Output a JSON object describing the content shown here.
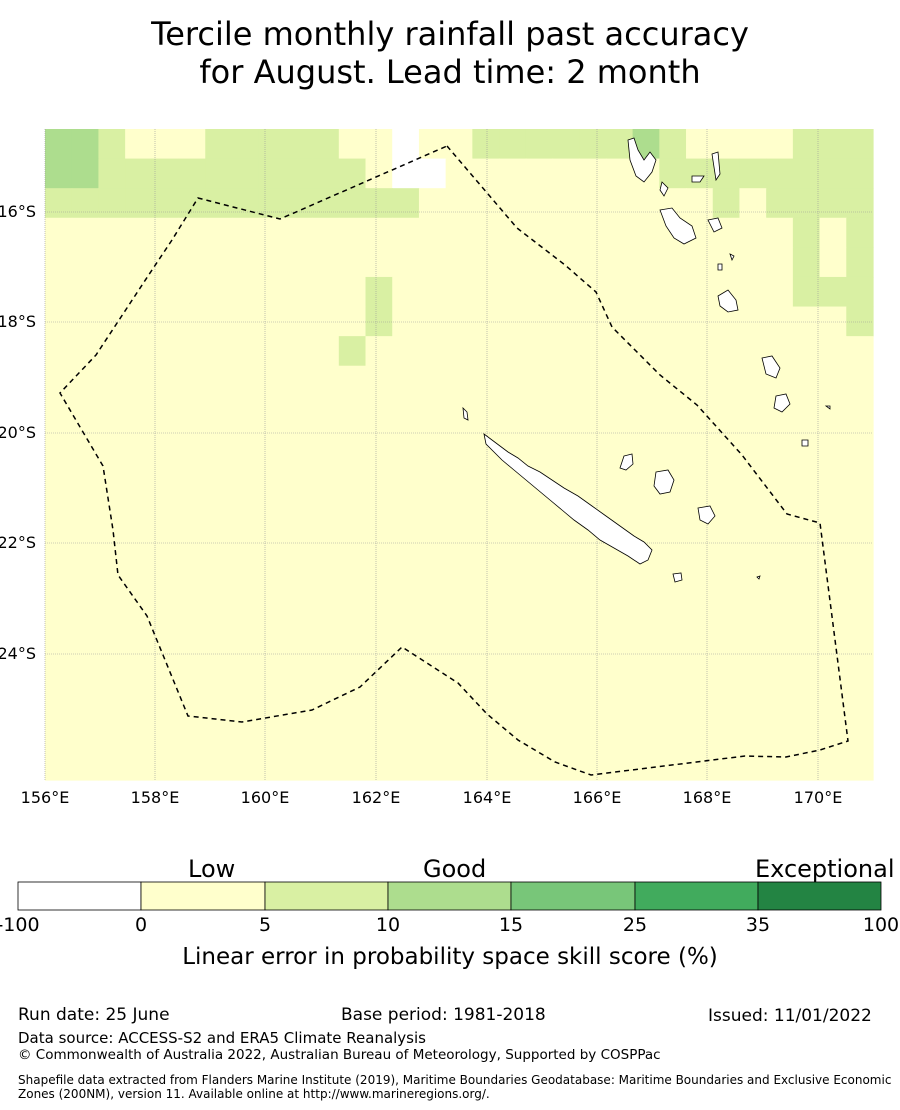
{
  "title": {
    "line1": "Tercile monthly rainfall past accuracy",
    "line2": "for August. Lead time: 2 month"
  },
  "map": {
    "lon_ticks": [
      "156°E",
      "158°E",
      "160°E",
      "162°E",
      "164°E",
      "166°E",
      "168°E",
      "170°E"
    ],
    "lat_ticks": [
      "16°S",
      "18°S",
      "20°S",
      "22°S",
      "24°S"
    ],
    "boundary": "dashed",
    "grid": true
  },
  "colorbar": {
    "categories": [
      "Low",
      "Good",
      "Exceptional"
    ],
    "tick_labels": [
      "-100",
      "0",
      "5",
      "10",
      "15",
      "25",
      "35",
      "100"
    ],
    "colors": [
      "#ffffff",
      "#ffffcc",
      "#d9f0a3",
      "#addd8e",
      "#78c679",
      "#41ab5d",
      "#238443"
    ],
    "label": "Linear error in probability space skill score (%)"
  },
  "footer": {
    "run_date": "Run date: 25 June",
    "base_period": "Base period: 1981-2018",
    "issued": "Issued: 11/01/2022",
    "data_source": "Data source: ACCESS-S2 and ERA5 Climate Reanalysis",
    "copyright": "© Commonwealth of Australia 2022, Australian Bureau of Meteorology, Supported by COSPPac",
    "shapefile": "Shapefile data extracted from Flanders Marine Institute (2019), Maritime Boundaries Geodatabase: Maritime Boundaries and Exclusive Economic Zones (200NM), version 11. Available online at http://www.marineregions.org/."
  },
  "grid_cells": [
    "3321112222211011222222321111222",
    "3322222222221001111111122222222",
    "2222222222222211111111111212222",
    "1111111111111111111111111111212",
    "1111111111111111111111111111212",
    "1111111111112111111111111111222",
    "1111111111112111111111111111112",
    "1111111111121111111111111111111",
    "1111111111111111111111111111111",
    "1111111111111111111111111111111",
    "1111111111111111111111111111111",
    "1111111111111111111111111111111",
    "1111111111111111111111111111111",
    "1111111111111111111111111111111",
    "1111111111111111111111111111111",
    "1111111111111111111111111111111",
    "1111111111111111111111111111111",
    "1111111111111111111111111111111",
    "1111111111111111111111111111111",
    "1111111111111111111111111111111",
    "1111111111111111111111111111111",
    "1111111111111111111111111111111"
  ]
}
